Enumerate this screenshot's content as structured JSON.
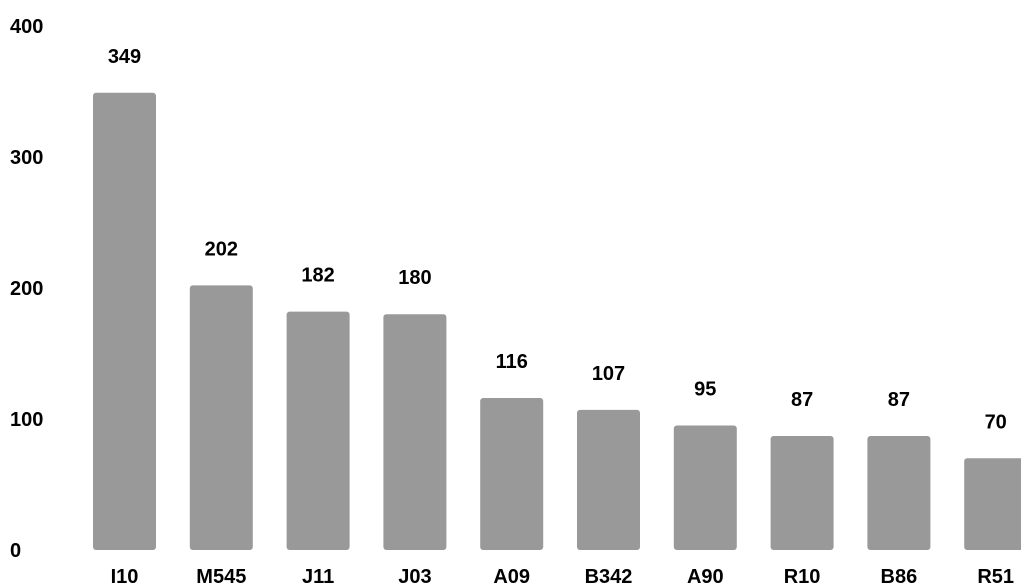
{
  "chart_data": {
    "type": "bar",
    "categories": [
      "I10",
      "M545",
      "J11",
      "J03",
      "A09",
      "B342",
      "A90",
      "R10",
      "B86",
      "R51"
    ],
    "values": [
      349,
      202,
      182,
      180,
      116,
      107,
      95,
      87,
      87,
      70
    ],
    "data_labels": [
      "349",
      "202",
      "182",
      "180",
      "116",
      "107",
      "95",
      "87",
      "87",
      "70"
    ],
    "title": "",
    "xlabel": "",
    "ylabel": "",
    "ylim": [
      0,
      400
    ],
    "yticks": [
      0,
      100,
      200,
      300,
      400
    ],
    "ytick_labels": [
      "0",
      "100",
      "200",
      "300",
      "400"
    ],
    "grid": false,
    "legend": "none",
    "bar_color": "#999999",
    "text_color": "#000000"
  }
}
